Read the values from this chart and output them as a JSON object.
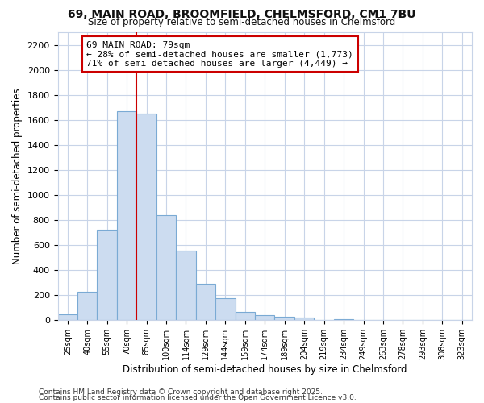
{
  "title1": "69, MAIN ROAD, BROOMFIELD, CHELMSFORD, CM1 7BU",
  "title2": "Size of property relative to semi-detached houses in Chelmsford",
  "xlabel": "Distribution of semi-detached houses by size in Chelmsford",
  "ylabel": "Number of semi-detached properties",
  "categories": [
    "25sqm",
    "40sqm",
    "55sqm",
    "70sqm",
    "85sqm",
    "100sqm",
    "114sqm",
    "129sqm",
    "144sqm",
    "159sqm",
    "174sqm",
    "189sqm",
    "204sqm",
    "219sqm",
    "234sqm",
    "249sqm",
    "263sqm",
    "278sqm",
    "293sqm",
    "308sqm",
    "323sqm"
  ],
  "values": [
    45,
    225,
    725,
    1670,
    1650,
    840,
    555,
    295,
    175,
    65,
    40,
    30,
    20,
    0,
    10,
    0,
    0,
    0,
    0,
    0,
    0
  ],
  "bar_color": "#ccdcf0",
  "bar_edge_color": "#7aaad4",
  "red_line_label": "69 MAIN ROAD: 79sqm",
  "annotation_line1": "← 28% of semi-detached houses are smaller (1,773)",
  "annotation_line2": "71% of semi-detached houses are larger (4,449) →",
  "ylim": [
    0,
    2300
  ],
  "yticks": [
    0,
    200,
    400,
    600,
    800,
    1000,
    1200,
    1400,
    1600,
    1800,
    2000,
    2200
  ],
  "annotation_box_color": "#ffffff",
  "annotation_box_edge": "#cc0000",
  "footer1": "Contains HM Land Registry data © Crown copyright and database right 2025.",
  "footer2": "Contains public sector information licensed under the Open Government Licence v3.0.",
  "bg_color": "#ffffff",
  "grid_color": "#c8d4e8",
  "red_line_x": 4.0
}
